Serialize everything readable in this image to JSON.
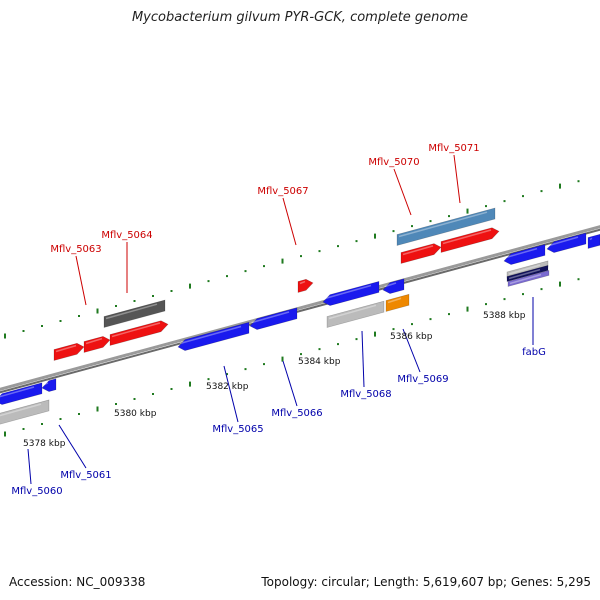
{
  "title": "Mycobacterium gilvum PYR-GCK, complete genome",
  "footer": {
    "accession": "Accession: NC_009338",
    "summary": "Topology: circular; Length: 5,619,607 bp; Genes: 5,295"
  },
  "colors": {
    "backbone": "#7f7f7f",
    "tick": "#1f7a1f",
    "forward_label": "#cc0000",
    "reverse_label": "#0000aa",
    "blue_gene": "#1a1aee",
    "red_gene": "#ee1111",
    "steel_gene": "#4f88b8",
    "dark_gray_gene": "#555555",
    "light_gray_gene": "#bbbbbb",
    "orange_gene": "#ee8800",
    "navy_gene": "#10105a",
    "lavender_gene": "#7a6ad0"
  },
  "scale": {
    "unit": "kbp",
    "labels": [
      "5378 kbp",
      "5380 kbp",
      "5382 kbp",
      "5384 kbp",
      "5386 kbp",
      "5388 kbp"
    ]
  },
  "genes": {
    "forward": [
      "Mflv_5063",
      "Mflv_5064",
      "Mflv_5067",
      "Mflv_5070",
      "Mflv_5071"
    ],
    "reverse": [
      "Mflv_5060",
      "Mflv_5061",
      "Mflv_5065",
      "Mflv_5066",
      "Mflv_5068",
      "Mflv_5069",
      "fabG"
    ]
  }
}
